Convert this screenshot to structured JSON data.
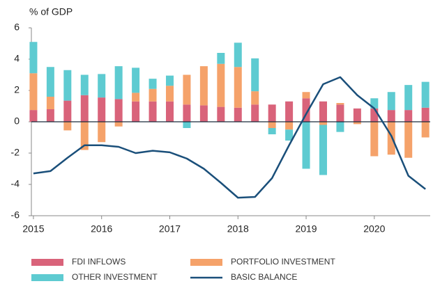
{
  "chart_data": {
    "type": "bar",
    "y_label": "% of GDP",
    "x": [
      2015,
      2015.25,
      2015.5,
      2015.75,
      2016,
      2016.25,
      2016.5,
      2016.75,
      2017,
      2017.25,
      2017.5,
      2017.75,
      2018,
      2018.25,
      2018.5,
      2018.75,
      2019,
      2019.25,
      2019.5,
      2019.75,
      2020,
      2020.25,
      2020.5,
      2020.75
    ],
    "xlim": [
      2014.97,
      2020.82
    ],
    "xticks": [
      2015,
      2016,
      2017,
      2018,
      2019,
      2020
    ],
    "ylim": [
      -6,
      6
    ],
    "yticks": [
      -6,
      -4,
      -2,
      0,
      2,
      4,
      6
    ],
    "series": [
      {
        "name": "FDI INFLOWS",
        "color": "#d9637a",
        "values": [
          0.75,
          0.8,
          1.35,
          1.7,
          1.55,
          1.45,
          1.3,
          1.3,
          1.3,
          1.1,
          1.05,
          0.95,
          0.9,
          1.1,
          1.1,
          1.3,
          1.5,
          1.3,
          1.1,
          0.85,
          0.85,
          0.75,
          0.75,
          0.9
        ]
      },
      {
        "name": "PORTFOLIO INVESTMENT",
        "color": "#f5a26a",
        "values": [
          2.35,
          0.8,
          -0.55,
          -1.8,
          -1.3,
          -0.3,
          0.55,
          0.8,
          1.0,
          1.9,
          2.5,
          2.75,
          2.6,
          0.85,
          -0.4,
          -0.5,
          0.4,
          -0.2,
          0.1,
          -0.15,
          -2.2,
          -2.1,
          -2.3,
          -1.0
        ]
      },
      {
        "name": "OTHER INVESTMENT",
        "color": "#5ecbd1",
        "values": [
          2.0,
          1.9,
          1.95,
          1.3,
          1.5,
          2.1,
          1.6,
          0.65,
          0.65,
          -0.4,
          0,
          0.7,
          1.55,
          2.1,
          -0.4,
          -0.7,
          -3.0,
          -3.2,
          -0.65,
          0,
          0.65,
          1.15,
          1.6,
          1.65
        ]
      },
      {
        "name": "BASIC BALANCE",
        "color": "#1a4f7a",
        "type": "line",
        "values": [
          -3.3,
          -3.15,
          -2.3,
          -1.5,
          -1.5,
          -1.6,
          -2.0,
          -1.85,
          -1.95,
          -2.35,
          -3.0,
          -3.9,
          -4.85,
          -4.8,
          -3.6,
          -1.5,
          0.5,
          2.4,
          2.85,
          1.7,
          0.85,
          -0.9,
          -3.45,
          -4.3
        ]
      }
    ]
  }
}
